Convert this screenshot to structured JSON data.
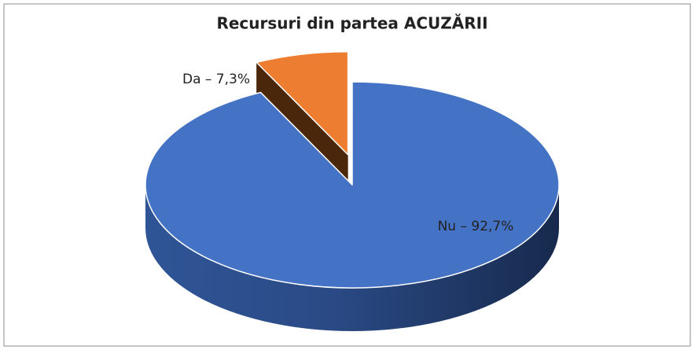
{
  "chart_data": {
    "type": "pie3d",
    "title": "Recursuri din partea ACUZĂRII",
    "categories": [
      "Nu",
      "Da"
    ],
    "values": [
      92.7,
      7.3
    ],
    "value_labels": [
      "Nu – 92,7%",
      "Da – 7,3%"
    ],
    "colors": [
      "#4472c4",
      "#ed7d31"
    ],
    "exploded": [
      false,
      true
    ]
  }
}
